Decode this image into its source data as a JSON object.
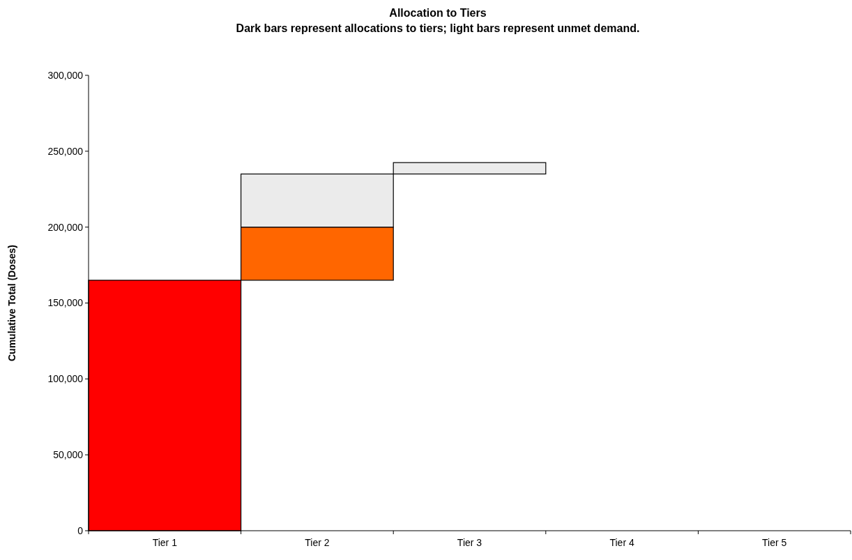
{
  "chart_data": {
    "type": "bar",
    "title": "Allocation to Tiers",
    "subtitle": "Dark bars represent allocations to tiers; light bars represent unmet demand.",
    "ylabel": "Cumulative Total (Doses)",
    "categories": [
      "Tier 1",
      "Tier 2",
      "Tier 3",
      "Tier 4",
      "Tier 5"
    ],
    "series": [
      {
        "colors": [
          "#ff0000",
          "#ff6600",
          null,
          null,
          null
        ],
        "values": [
          165000,
          35000,
          null,
          null,
          null
        ],
        "base": [
          0,
          165000,
          null,
          null,
          null
        ]
      },
      {
        "color": "#ebebeb",
        "values": [
          null,
          35000,
          7500,
          null,
          null
        ],
        "base": [
          null,
          200000,
          235000,
          null,
          null
        ]
      }
    ],
    "ylim": [
      0,
      300000
    ],
    "yticks": [
      {
        "value": 0,
        "label": "0"
      },
      {
        "value": 50000,
        "label": "50,000"
      },
      {
        "value": 100000,
        "label": "100,000"
      },
      {
        "value": 150000,
        "label": "150,000"
      },
      {
        "value": 200000,
        "label": "200,000"
      },
      {
        "value": 250000,
        "label": "250,000"
      },
      {
        "value": 300000,
        "label": "300,000"
      }
    ],
    "grid": false
  }
}
